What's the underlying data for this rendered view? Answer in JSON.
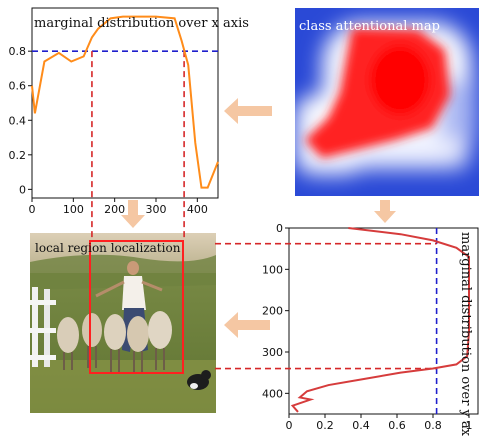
{
  "panels": {
    "heatmap": {
      "label": "class attentional map"
    },
    "photo": {
      "label": "local region localization"
    }
  },
  "colors": {
    "curve_x": "#ff8c1a",
    "curve_y": "#d63c3c",
    "threshold": "#1f1fcc",
    "guide": "#d62728",
    "arrow": "#f5c7a3",
    "box": "#ff2020"
  },
  "chart_data": [
    {
      "type": "line",
      "title": "marginal distribution over x axis",
      "xlim": [
        0,
        450
      ],
      "ylim": [
        -0.05,
        1.05
      ],
      "xticks": [
        0,
        100,
        200,
        300,
        400
      ],
      "yticks": [
        0.0,
        0.2,
        0.4,
        0.6,
        0.8
      ],
      "threshold": 0.8,
      "guides": [
        145,
        368
      ],
      "x": [
        0,
        7,
        30,
        65,
        95,
        125,
        145,
        160,
        190,
        220,
        250,
        300,
        345,
        362,
        378,
        395,
        410,
        425,
        440,
        450
      ],
      "y": [
        0.6,
        0.44,
        0.74,
        0.79,
        0.74,
        0.77,
        0.88,
        0.93,
        0.99,
        1.0,
        1.0,
        1.0,
        0.99,
        0.86,
        0.72,
        0.27,
        0.01,
        0.01,
        0.1,
        0.16
      ]
    },
    {
      "type": "line",
      "title": "marginal distribution over y axis",
      "xlim": [
        0,
        1.05
      ],
      "ylim": [
        0,
        450
      ],
      "xticks": [
        0.0,
        0.2,
        0.4,
        0.6,
        0.8,
        1.0
      ],
      "yticks": [
        0,
        100,
        200,
        300,
        400
      ],
      "threshold": 0.82,
      "guides": [
        38,
        340
      ],
      "x": [
        0.33,
        0.62,
        0.8,
        0.93,
        1.0,
        1.0,
        1.0,
        0.99,
        0.93,
        0.8,
        0.62,
        0.42,
        0.22,
        0.1,
        0.06,
        0.12,
        0.02,
        0.05
      ],
      "y": [
        0,
        15,
        30,
        48,
        70,
        150,
        250,
        310,
        330,
        340,
        350,
        365,
        380,
        395,
        410,
        415,
        430,
        445
      ]
    }
  ]
}
